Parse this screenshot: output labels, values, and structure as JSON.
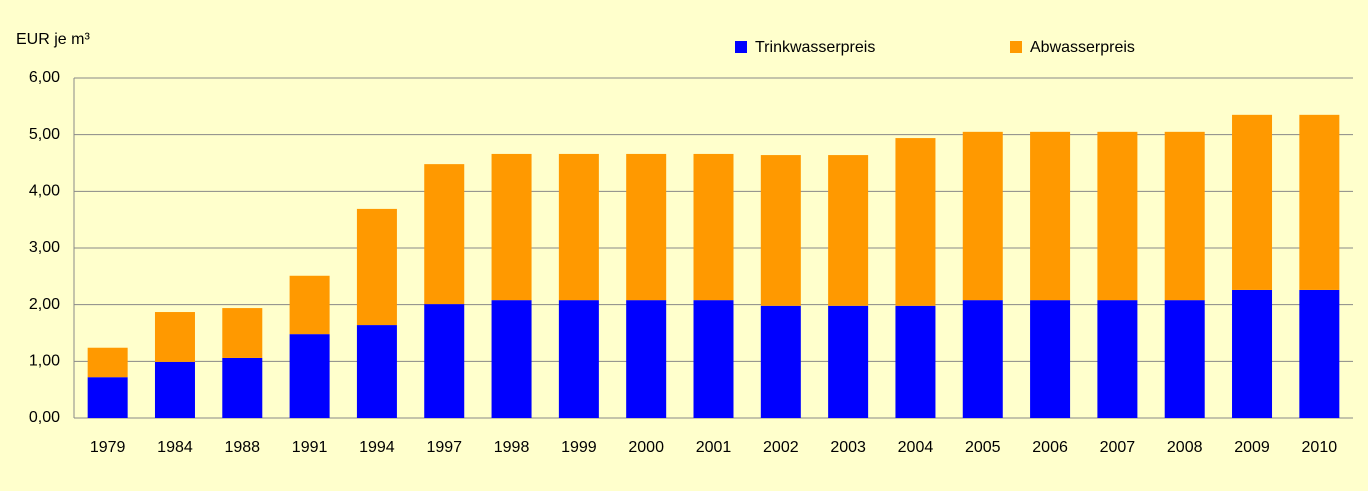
{
  "chart_data": {
    "type": "stacked_bar",
    "y_axis_label": "EUR je m³",
    "categories": [
      "1979",
      "1984",
      "1988",
      "1991",
      "1994",
      "1997",
      "1998",
      "1999",
      "2000",
      "2001",
      "2002",
      "2003",
      "2004",
      "2005",
      "2006",
      "2007",
      "2008",
      "2009",
      "2010"
    ],
    "series": [
      {
        "name": "Trinkwasserpreis",
        "color": "#0000ff",
        "values": [
          0.72,
          0.99,
          1.06,
          1.48,
          1.64,
          2.01,
          2.08,
          2.08,
          2.08,
          2.08,
          1.98,
          1.98,
          1.98,
          2.08,
          2.08,
          2.08,
          2.08,
          2.26,
          2.26
        ]
      },
      {
        "name": "Abwasserpreis",
        "color": "#ff9900",
        "values": [
          0.52,
          0.88,
          0.88,
          1.03,
          2.05,
          2.47,
          2.58,
          2.58,
          2.58,
          2.58,
          2.66,
          2.66,
          2.96,
          2.97,
          2.97,
          2.97,
          2.97,
          3.09,
          3.09
        ]
      }
    ],
    "ylim": [
      0,
      6
    ],
    "yticks": [
      {
        "value": 0,
        "label": "0,00"
      },
      {
        "value": 1,
        "label": "1,00"
      },
      {
        "value": 2,
        "label": "2,00"
      },
      {
        "value": 3,
        "label": "3,00"
      },
      {
        "value": 4,
        "label": "4,00"
      },
      {
        "value": 5,
        "label": "5,00"
      },
      {
        "value": 6,
        "label": "6,00"
      }
    ],
    "grid": true
  }
}
